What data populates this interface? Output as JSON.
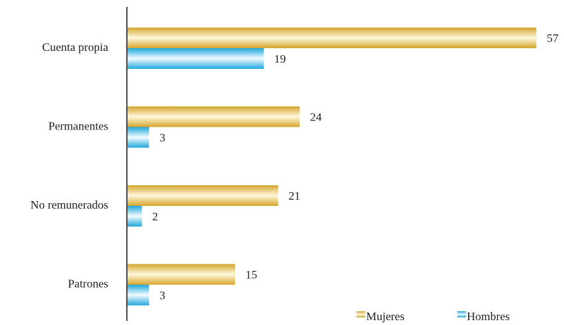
{
  "chart_data": {
    "type": "hbar",
    "categories": [
      "Cuenta propia",
      "Permanentes",
      "No remunerados",
      "Patrones"
    ],
    "series": [
      {
        "name": "Mujeres",
        "color": "#d4a52c",
        "values": [
          57,
          24,
          21,
          15
        ]
      },
      {
        "name": "Hombres",
        "color": "#1fa8dc",
        "values": [
          19,
          3,
          2,
          3
        ]
      }
    ],
    "legend": "bottom-right"
  }
}
